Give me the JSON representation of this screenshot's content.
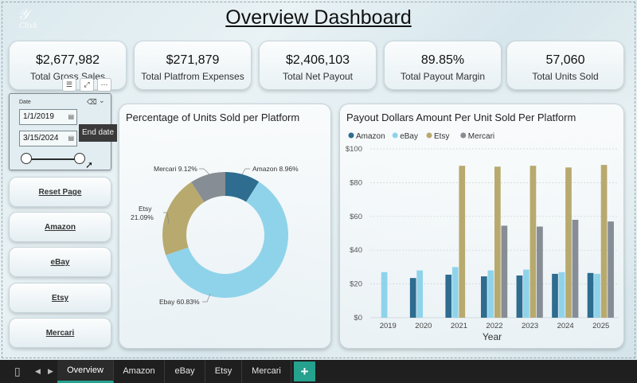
{
  "title": "Overview Dashboard",
  "kpis": [
    {
      "value": "$2,677,982",
      "label": "Total Gross Sales"
    },
    {
      "value": "$271,879",
      "label": "Total Platfrom Expenses"
    },
    {
      "value": "$2,406,103",
      "label": "Total Net Payout"
    },
    {
      "value": "89.85%",
      "label": "Total Payout Margin"
    },
    {
      "value": "57,060",
      "label": "Total Units Sold"
    }
  ],
  "date_slicer": {
    "label": "Date",
    "start_date": "1/1/2019",
    "end_date": "3/15/2024",
    "tooltip": "End date"
  },
  "nav_buttons": [
    "Reset Page",
    "Amazon",
    "eBay",
    "Etsy",
    "Mercari"
  ],
  "colors": {
    "amazon": "#2e6c90",
    "ebay": "#8fd3ea",
    "etsy": "#b8a96e",
    "mercari": "#868d94",
    "accent": "#25a18e"
  },
  "donut": {
    "title": "Percentage of Units Sold per Platform",
    "slices": [
      {
        "name": "Amazon",
        "pct": 8.96,
        "label": "Amazon 8.96%"
      },
      {
        "name": "Ebay",
        "pct": 60.83,
        "label": "Ebay 60.83%"
      },
      {
        "name": "Etsy",
        "pct": 21.09,
        "label_line1": "Etsy",
        "label_line2": "21.09%"
      },
      {
        "name": "Mercari",
        "pct": 9.12,
        "label": "Mercari 9.12%"
      }
    ]
  },
  "chart_data": {
    "type": "bar",
    "title": "Payout Dollars Amount Per Unit Sold Per Platform",
    "xlabel": "Year",
    "ylabel": "",
    "categories": [
      "2019",
      "2020",
      "2021",
      "2022",
      "2023",
      "2024",
      "2025"
    ],
    "ylim": [
      0,
      100
    ],
    "yticks": [
      "$0",
      "$20",
      "$40",
      "$60",
      "$80",
      "$100"
    ],
    "legend_position": "top-left",
    "series": [
      {
        "name": "Amazon",
        "values": [
          null,
          23.5,
          25.5,
          24.5,
          25,
          26,
          26.5
        ]
      },
      {
        "name": "eBay",
        "values": [
          27,
          28,
          30,
          28,
          28.5,
          27,
          26
        ]
      },
      {
        "name": "Etsy",
        "values": [
          null,
          null,
          90,
          89.5,
          90,
          89,
          90.5
        ]
      },
      {
        "name": "Mercari",
        "values": [
          null,
          null,
          null,
          54.5,
          54,
          58,
          57
        ]
      }
    ]
  },
  "taskbar": {
    "tabs": [
      "Overview",
      "Amazon",
      "eBay",
      "Etsy",
      "Mercari"
    ],
    "active_tab": "Overview",
    "add_label": "+"
  }
}
